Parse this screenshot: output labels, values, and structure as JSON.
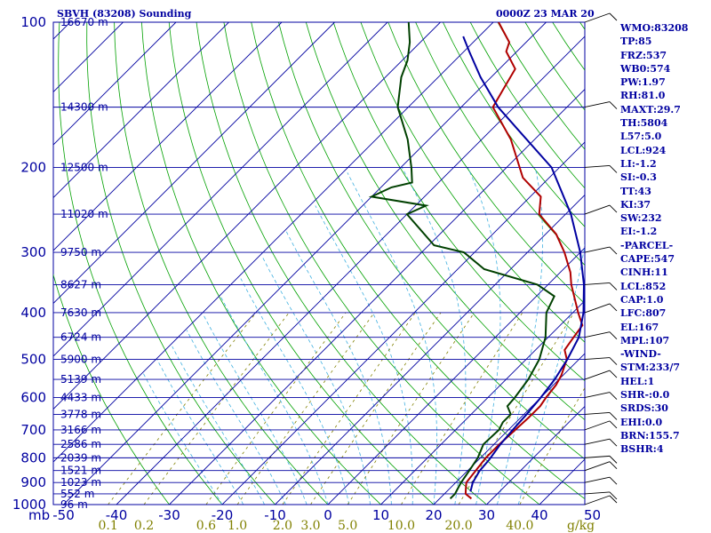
{
  "header": {
    "station": "SBVH (83208) Sounding",
    "time": "0000Z 23 MAR 20"
  },
  "indices": [
    "WMO:83208",
    "TP:85",
    "FRZ:537",
    "WB0:574",
    "PW:1.97",
    "RH:81.0",
    "MAXT:29.7",
    "TH:5804",
    "L57:5.0",
    "LCL:924",
    "LI:-1.2",
    "SI:-0.3",
    "TT:43",
    "KI:37",
    "SW:232",
    "EI:-1.2",
    "-PARCEL-",
    "CAPE:547",
    "CINH:11",
    "LCL:852",
    "CAP:1.0",
    "LFC:807",
    "EL:167",
    "MPL:107",
    "-WIND-",
    "STM:233/7",
    "HEL:1",
    "SHR-:0.0",
    "SRDS:30",
    "EHI:0.0",
    "BRN:155.7",
    "BSHR:4"
  ],
  "chart_data": {
    "type": "line",
    "subtype": "skew-t log-p sounding",
    "y_axis_unit": "mb",
    "pressure_levels": [
      100,
      150,
      200,
      250,
      300,
      350,
      400,
      450,
      500,
      550,
      600,
      650,
      700,
      750,
      800,
      850,
      900,
      950,
      1000
    ],
    "pressure_tick_labels": [
      "100",
      "200",
      "300",
      "400",
      "500",
      "600",
      "700",
      "800",
      "900",
      "1000"
    ],
    "height_labels": [
      {
        "p": 100,
        "label": "16670 m"
      },
      {
        "p": 150,
        "label": "14300 m"
      },
      {
        "p": 200,
        "label": "12500 m"
      },
      {
        "p": 250,
        "label": "11020 m"
      },
      {
        "p": 300,
        "label": "9750 m"
      },
      {
        "p": 350,
        "label": "8627 m"
      },
      {
        "p": 400,
        "label": "7630 m"
      },
      {
        "p": 450,
        "label": "6724 m"
      },
      {
        "p": 500,
        "label": "5900 m"
      },
      {
        "p": 550,
        "label": "5139 m"
      },
      {
        "p": 600,
        "label": "4433 m"
      },
      {
        "p": 650,
        "label": "3778 m"
      },
      {
        "p": 700,
        "label": "3166 m"
      },
      {
        "p": 750,
        "label": "2586 m"
      },
      {
        "p": 800,
        "label": "2039 m"
      },
      {
        "p": 850,
        "label": "1521 m"
      },
      {
        "p": 900,
        "label": "1023 m"
      },
      {
        "p": 950,
        "label": "552 m"
      },
      {
        "p": 1000,
        "label": "96 m"
      }
    ],
    "x_axis_corner_label": "mb",
    "temperature_tick_labels": [
      -50,
      -40,
      -30,
      -20,
      -10,
      0,
      10,
      20,
      30,
      40,
      50
    ],
    "x_range_degC_at_1000mb": [
      -50,
      50
    ],
    "mixing_ratio_labels": [
      "0.1",
      "0.2",
      "0.6",
      "1.0",
      "2.0",
      "3.0",
      "5.0",
      "10.0",
      "20.0",
      "40.0"
    ],
    "mixing_ratio_values": [
      0.1,
      0.2,
      0.6,
      1.0,
      2.0,
      3.0,
      5.0,
      10.0,
      20.0,
      40.0
    ],
    "mixing_ratio_unit": "g/kg",
    "series": [
      {
        "key": "temperature",
        "color": "#b00000",
        "points": [
          [
            972,
            26.0
          ],
          [
            950,
            24.0
          ],
          [
            925,
            23.0
          ],
          [
            900,
            22.0
          ],
          [
            850,
            21.5
          ],
          [
            800,
            21.0
          ],
          [
            750,
            21.0
          ],
          [
            700,
            21.3
          ],
          [
            660,
            21.5
          ],
          [
            625,
            21.5
          ],
          [
            600,
            21.0
          ],
          [
            565,
            20.5
          ],
          [
            540,
            19.7
          ],
          [
            500,
            17.7
          ],
          [
            478,
            15.5
          ],
          [
            450,
            14.8
          ],
          [
            425,
            14.2
          ],
          [
            400,
            11.0
          ],
          [
            350,
            4.4
          ],
          [
            330,
            1.9
          ],
          [
            300,
            -3.0
          ],
          [
            275,
            -8.0
          ],
          [
            250,
            -15.0
          ],
          [
            230,
            -18.0
          ],
          [
            210,
            -25.0
          ],
          [
            175,
            -34.5
          ],
          [
            150,
            -44.0
          ],
          [
            137,
            -45.5
          ],
          [
            125,
            -47.0
          ],
          [
            115,
            -52.0
          ],
          [
            110,
            -53.2
          ],
          [
            100,
            -59.0
          ]
        ]
      },
      {
        "key": "dewpoint",
        "color": "#004000",
        "points": [
          [
            972,
            22.0
          ],
          [
            950,
            22.0
          ],
          [
            925,
            21.5
          ],
          [
            900,
            21.0
          ],
          [
            850,
            20.3
          ],
          [
            800,
            19.5
          ],
          [
            750,
            18.0
          ],
          [
            700,
            18.2
          ],
          [
            675,
            17.5
          ],
          [
            650,
            17.5
          ],
          [
            625,
            15.3
          ],
          [
            600,
            15.1
          ],
          [
            550,
            14.2
          ],
          [
            500,
            12.5
          ],
          [
            450,
            9.5
          ],
          [
            400,
            5.0
          ],
          [
            370,
            3.4
          ],
          [
            350,
            -2.0
          ],
          [
            325,
            -15.0
          ],
          [
            300,
            -22.0
          ],
          [
            290,
            -29.0
          ],
          [
            250,
            -40.0
          ],
          [
            240,
            -38.0
          ],
          [
            230,
            -50.0
          ],
          [
            220,
            -48.0
          ],
          [
            215,
            -45.0
          ],
          [
            200,
            -48.0
          ],
          [
            175,
            -54.0
          ],
          [
            150,
            -62.0
          ],
          [
            130,
            -67.0
          ],
          [
            120,
            -69.0
          ],
          [
            110,
            -72.0
          ],
          [
            100,
            -76.0
          ]
        ]
      },
      {
        "key": "parcel",
        "color": "#0000a0",
        "points": [
          [
            940,
            24.5
          ],
          [
            900,
            23.2
          ],
          [
            852,
            22.3
          ],
          [
            807,
            22.0
          ],
          [
            750,
            21.2
          ],
          [
            700,
            20.8
          ],
          [
            650,
            20.5
          ],
          [
            600,
            20.0
          ],
          [
            550,
            19.2
          ],
          [
            500,
            17.8
          ],
          [
            450,
            15.8
          ],
          [
            400,
            12.0
          ],
          [
            350,
            6.8
          ],
          [
            300,
            0.0
          ],
          [
            250,
            -9.0
          ],
          [
            200,
            -21.5
          ],
          [
            167,
            -35.0
          ],
          [
            150,
            -43.0
          ],
          [
            130,
            -52.0
          ],
          [
            115,
            -59.0
          ],
          [
            107,
            -63.0
          ]
        ]
      }
    ],
    "grid": true
  },
  "colors": {
    "background": "#ffffff",
    "axis": "#0000a0",
    "isobar": "#0000a0",
    "isotherm": "#0000a0",
    "dry_adiabat": "#00a000",
    "moist_adiabat": "#40b0e0",
    "mixing_ratio": "#808000",
    "temperature": "#b00000",
    "dewpoint": "#004000",
    "parcel": "#0000a0",
    "wind_barb": "#000000"
  }
}
